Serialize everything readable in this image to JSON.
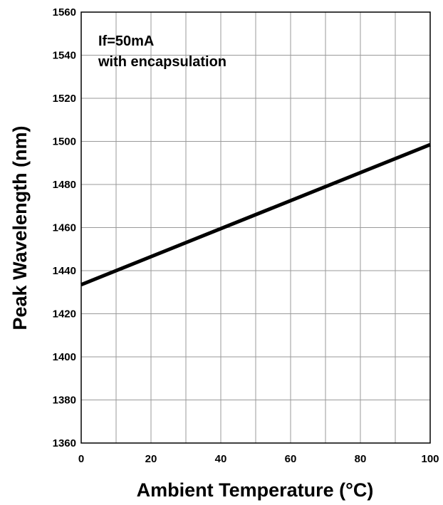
{
  "chart_data": {
    "type": "line",
    "title": "",
    "xlabel": "Ambient Temperature (°C)",
    "ylabel": "Peak Wavelength (nm)",
    "xlim": [
      0,
      100
    ],
    "ylim": [
      1360,
      1560
    ],
    "xticks": [
      0,
      20,
      40,
      60,
      80,
      100
    ],
    "yticks": [
      1360,
      1380,
      1400,
      1420,
      1440,
      1460,
      1480,
      1500,
      1520,
      1540,
      1560
    ],
    "grid": true,
    "annotations": [
      "If=50mA",
      "with encapsulation"
    ],
    "series": [
      {
        "x": [
          0,
          100
        ],
        "y": [
          1433.5,
          1498.5
        ],
        "color": "#000000"
      }
    ]
  }
}
